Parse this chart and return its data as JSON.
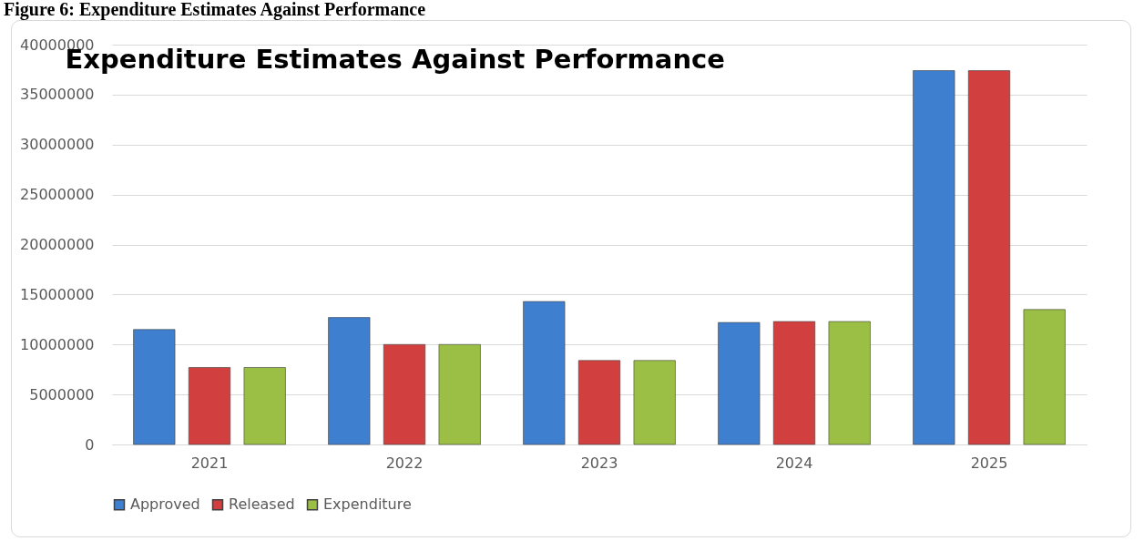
{
  "chart_data": {
    "type": "bar",
    "title": "Expenditure Estimates Against Performance",
    "annotations": [
      "Figure 6: Expenditure Estimates Against Performance"
    ],
    "categories": [
      "2021",
      "2022",
      "2023",
      "2024",
      "2025"
    ],
    "series": [
      {
        "name": "Approved",
        "color": "#3f7fd0",
        "values": [
          11500000,
          12700000,
          14300000,
          12200000,
          37400000
        ]
      },
      {
        "name": "Released",
        "color": "#d23f3f",
        "values": [
          7700000,
          10000000,
          8400000,
          12300000,
          37400000
        ]
      },
      {
        "name": "Expenditure",
        "color": "#9bbf45",
        "values": [
          7700000,
          10000000,
          8400000,
          12300000,
          13500000
        ]
      }
    ],
    "ylim": [
      0,
      40000000
    ],
    "yticks": [
      0,
      5000000,
      10000000,
      15000000,
      20000000,
      25000000,
      30000000,
      35000000,
      40000000
    ],
    "grid": "y",
    "legend": "bottom"
  }
}
